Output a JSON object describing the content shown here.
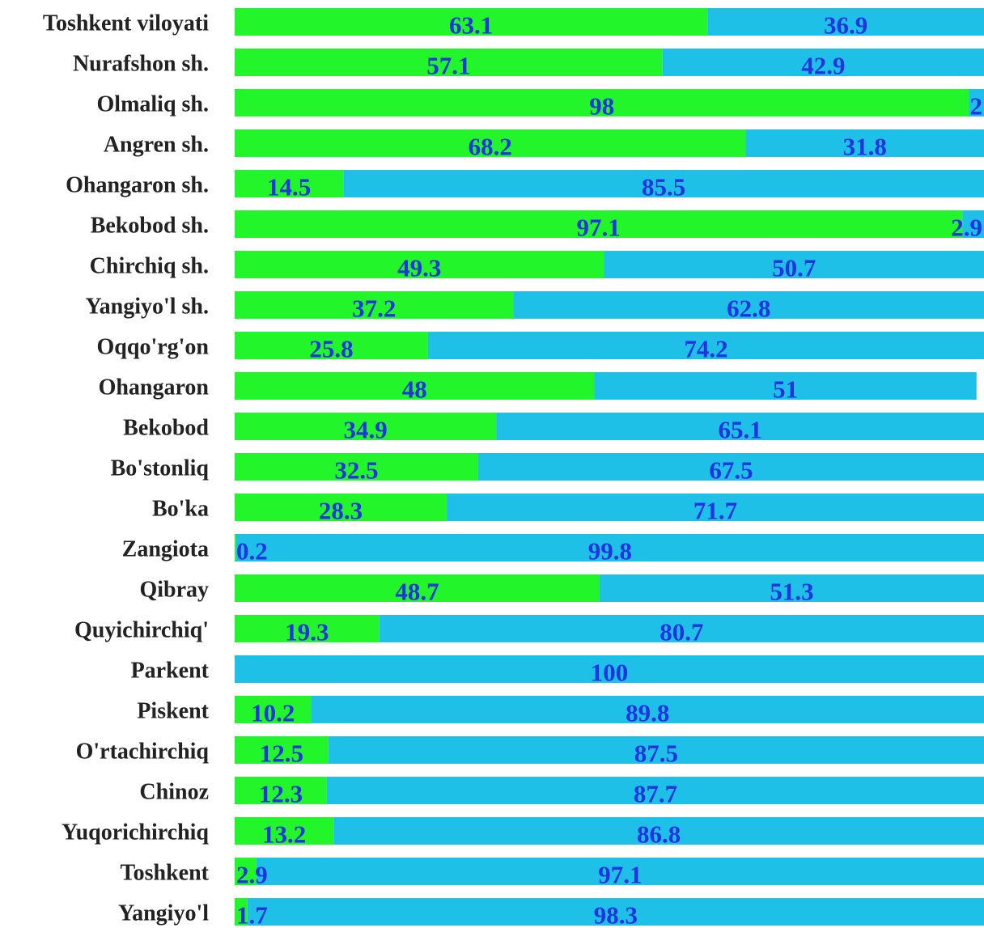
{
  "chart_data": {
    "type": "stacked-barh",
    "categories": [
      "Toshkent viloyati",
      "Nurafshon sh.",
      "Olmaliq sh.",
      "Angren sh.",
      "Ohangaron sh.",
      "Bekobod sh.",
      "Chirchiq sh.",
      "Yangiyo'l sh.",
      "Oqqo'rg'on",
      "Ohangaron",
      "Bekobod",
      "Bo'stonliq",
      "Bo'ka",
      "Zangiota",
      "Qibray",
      "Quyichirchiq'",
      "Parkent",
      "Piskent",
      "O'rtachirchiq",
      "Chinoz",
      "Yuqorichirchiq",
      "Toshkent",
      "Yangiyo'l"
    ],
    "series": [
      {
        "color": "#22f52a",
        "values": [
          63.1,
          57.1,
          98,
          68.2,
          14.5,
          97.1,
          49.3,
          37.2,
          25.8,
          48,
          34.9,
          32.5,
          28.3,
          0.2,
          48.7,
          19.3,
          null,
          10.2,
          12.5,
          12.3,
          13.2,
          2.9,
          1.7
        ]
      },
      {
        "color": "#1ec0e8",
        "values": [
          36.9,
          42.9,
          2,
          31.8,
          85.5,
          2.9,
          50.7,
          62.8,
          74.2,
          51,
          65.1,
          67.5,
          71.7,
          99.8,
          51.3,
          80.7,
          100,
          89.8,
          87.5,
          87.7,
          86.8,
          97.1,
          98.3
        ]
      }
    ],
    "xlim": [
      0,
      100
    ],
    "label_color": "#2233e0"
  }
}
